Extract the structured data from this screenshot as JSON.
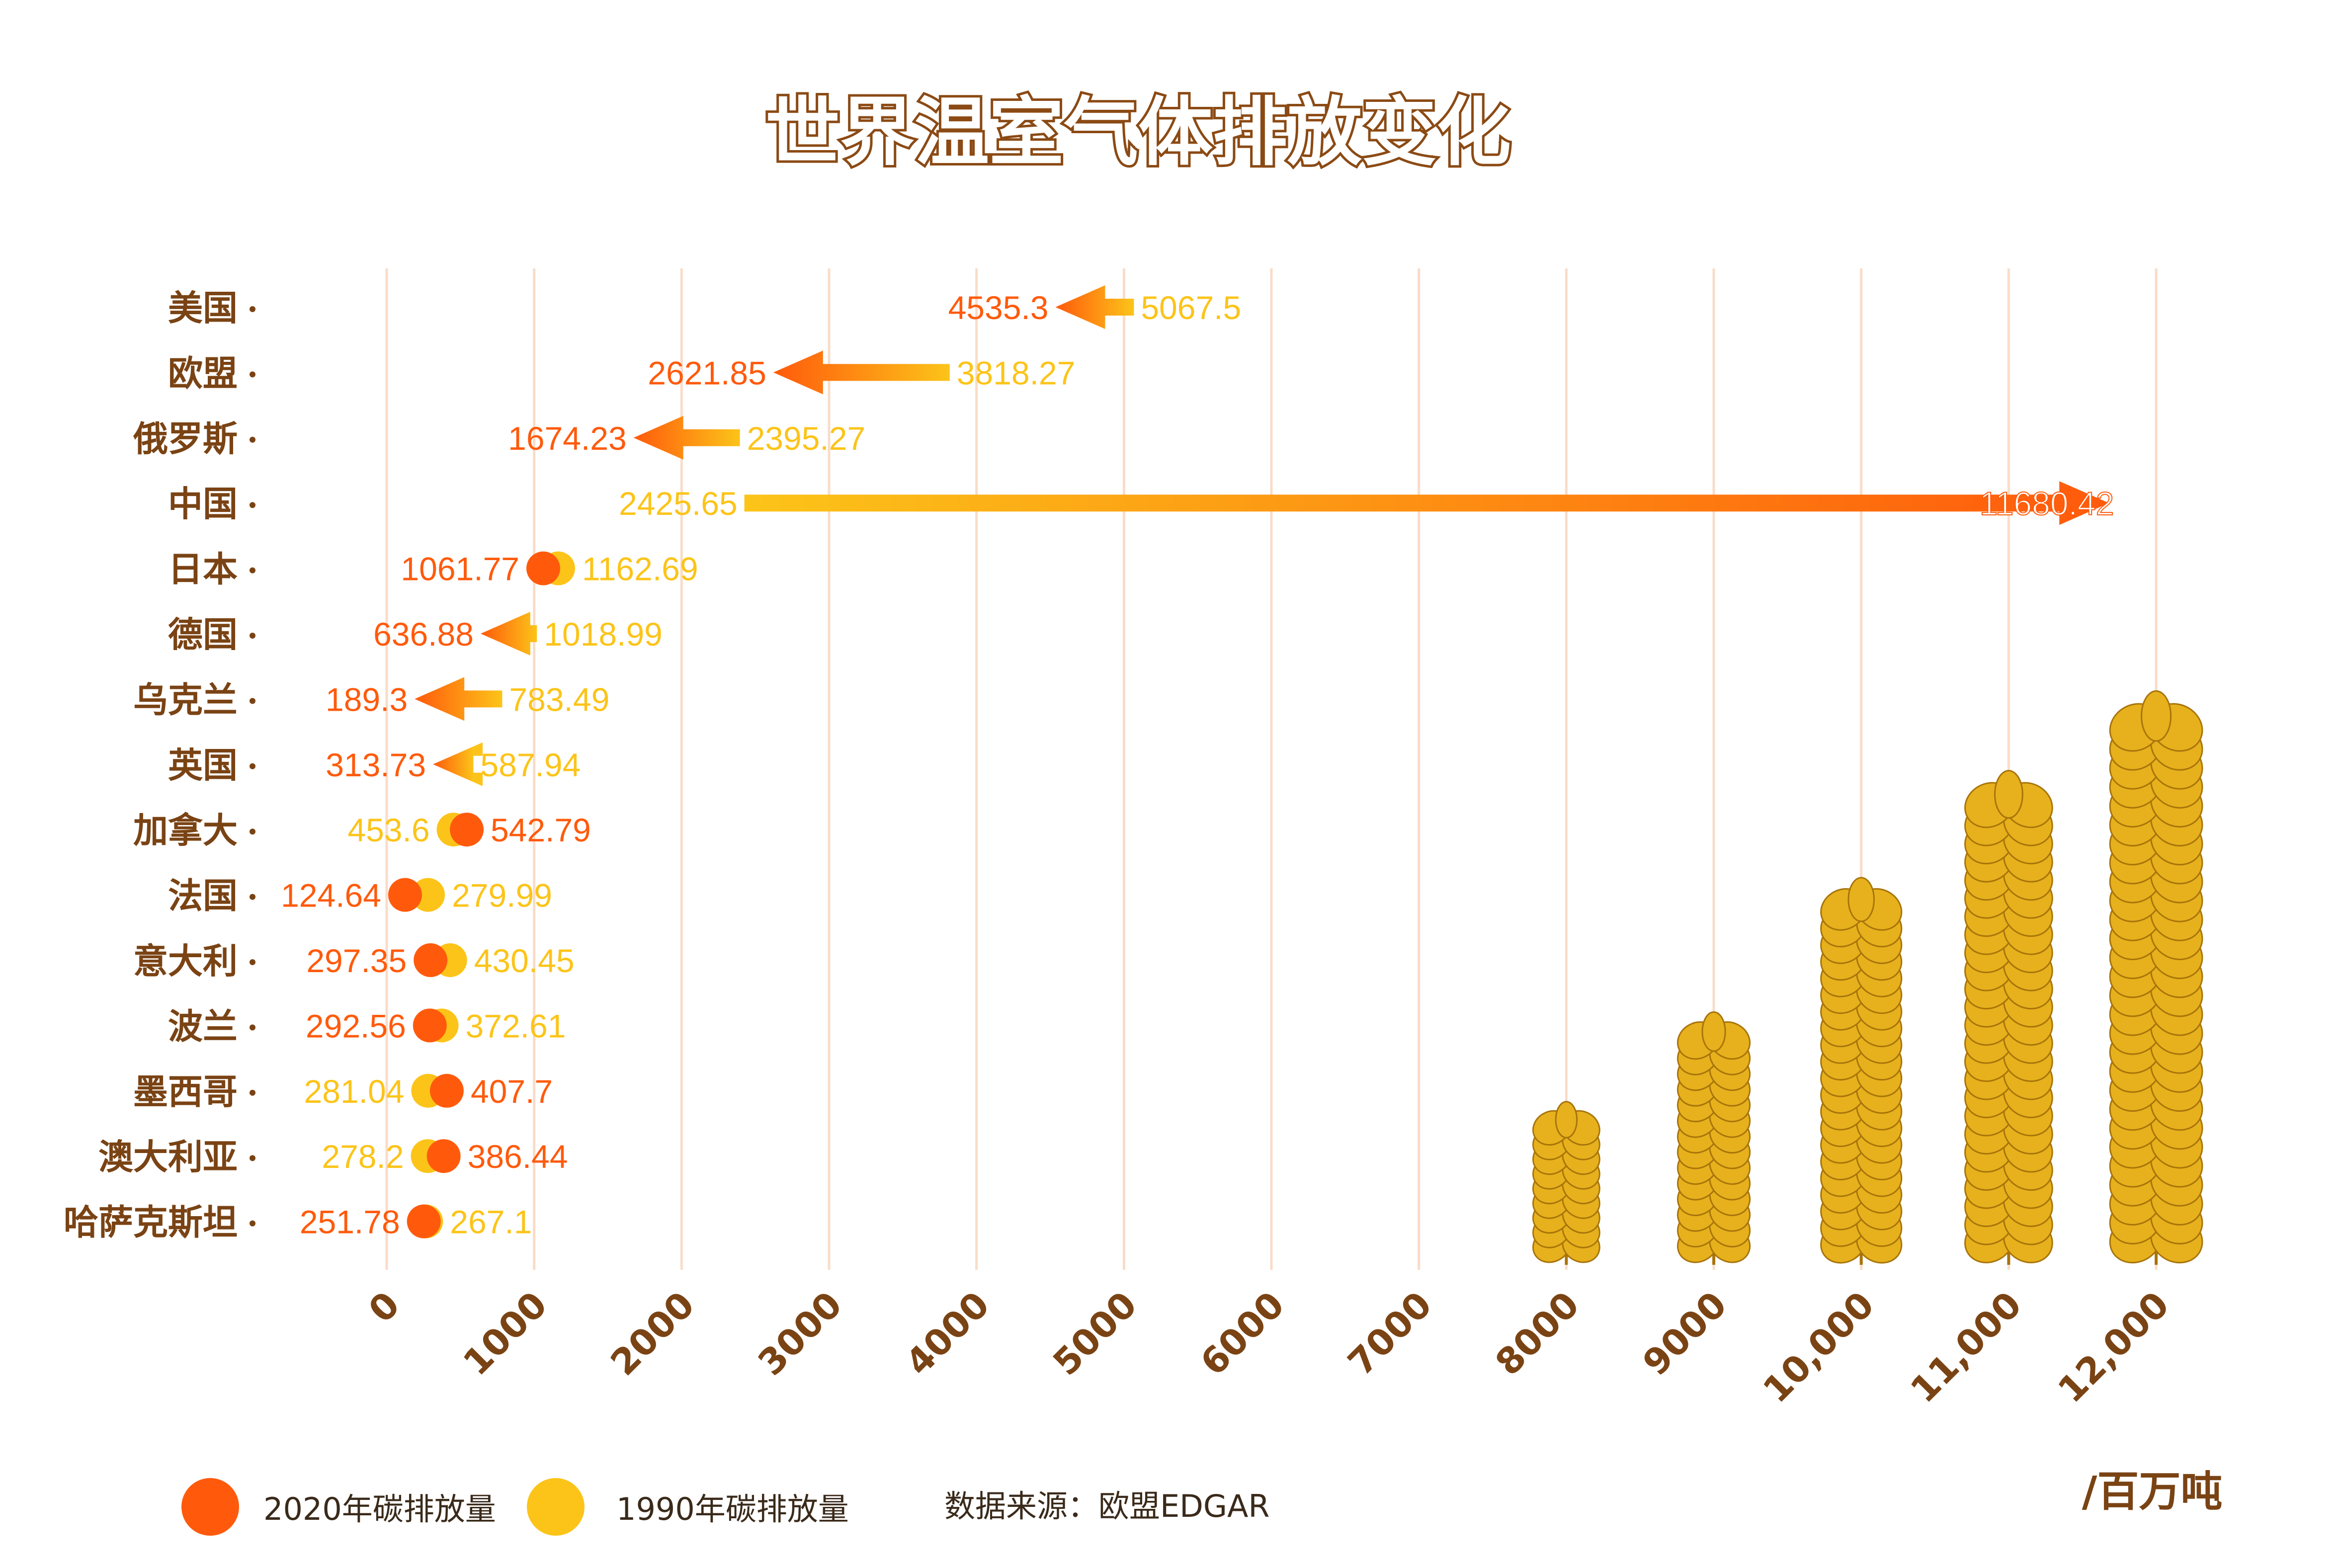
{
  "colors": {
    "accent_2020": "#FF5A0C",
    "accent_1990": "#FCC419",
    "title_fill": "#FFFFFF",
    "title_stroke": "#8B4A14",
    "label_brown": "#7A4314",
    "grid": "#F8DCC8",
    "wheat": "#E6B11C",
    "wheat_edge": "#A8740A"
  },
  "chart_data": {
    "type": "dumbbell",
    "title": "世界温室气体排放变化",
    "unit": "/百万吨",
    "source": "数据来源：欧盟EDGAR",
    "xlim": [
      0,
      12000
    ],
    "x_ticks": [
      "0",
      "1000",
      "2000",
      "3000",
      "4000",
      "5000",
      "6000",
      "7000",
      "8000",
      "9000",
      "10,000",
      "11,000",
      "12,000"
    ],
    "legend": [
      {
        "name": "2020年碳排放量",
        "color": "#FF5A0C"
      },
      {
        "name": "1990年碳排放量",
        "color": "#FCC419"
      }
    ],
    "rows": [
      {
        "country": "美国",
        "y1990": 5067.5,
        "y2020": 4535.3,
        "label1990": "5067.5",
        "label2020": "4535.3",
        "style": "arrow"
      },
      {
        "country": "欧盟",
        "y1990": 3818.27,
        "y2020": 2621.85,
        "label1990": "3818.27",
        "label2020": "2621.85",
        "style": "arrow"
      },
      {
        "country": "俄罗斯",
        "y1990": 2395.27,
        "y2020": 1674.23,
        "label1990": "2395.27",
        "label2020": "1674.23",
        "style": "arrow"
      },
      {
        "country": "中国",
        "y1990": 2425.65,
        "y2020": 11680.42,
        "label1990": "2425.65",
        "label2020": "11680.42",
        "style": "arrow"
      },
      {
        "country": "日本",
        "y1990": 1162.69,
        "y2020": 1061.77,
        "label1990": "1162.69",
        "label2020": "1061.77",
        "style": "dots"
      },
      {
        "country": "德国",
        "y1990": 1018.99,
        "y2020": 636.88,
        "label1990": "1018.99",
        "label2020": "636.88",
        "style": "arrow"
      },
      {
        "country": "乌克兰",
        "y1990": 783.49,
        "y2020": 189.3,
        "label1990": "783.49",
        "label2020": "189.3",
        "style": "arrow"
      },
      {
        "country": "英国",
        "y1990": 587.94,
        "y2020": 313.73,
        "label1990": "587.94",
        "label2020": "313.73",
        "style": "arrow"
      },
      {
        "country": "加拿大",
        "y1990": 453.6,
        "y2020": 542.79,
        "label1990": "453.6",
        "label2020": "542.79",
        "style": "dots"
      },
      {
        "country": "法国",
        "y1990": 279.99,
        "y2020": 124.64,
        "label1990": "279.99",
        "label2020": "124.64",
        "style": "dots"
      },
      {
        "country": "意大利",
        "y1990": 430.45,
        "y2020": 297.35,
        "label1990": "430.45",
        "label2020": "297.35",
        "style": "dots"
      },
      {
        "country": "波兰",
        "y1990": 372.61,
        "y2020": 292.56,
        "label1990": "372.61",
        "label2020": "292.56",
        "style": "dots"
      },
      {
        "country": "墨西哥",
        "y1990": 281.04,
        "y2020": 407.7,
        "label1990": "281.04",
        "label2020": "407.7",
        "style": "dots"
      },
      {
        "country": "澳大利亚",
        "y1990": 278.2,
        "y2020": 386.44,
        "label1990": "278.2",
        "label2020": "386.44",
        "style": "dots"
      },
      {
        "country": "哈萨克斯坦",
        "y1990": 267.1,
        "y2020": 251.78,
        "label1990": "267.1",
        "label2020": "251.78",
        "style": "dots"
      }
    ]
  }
}
